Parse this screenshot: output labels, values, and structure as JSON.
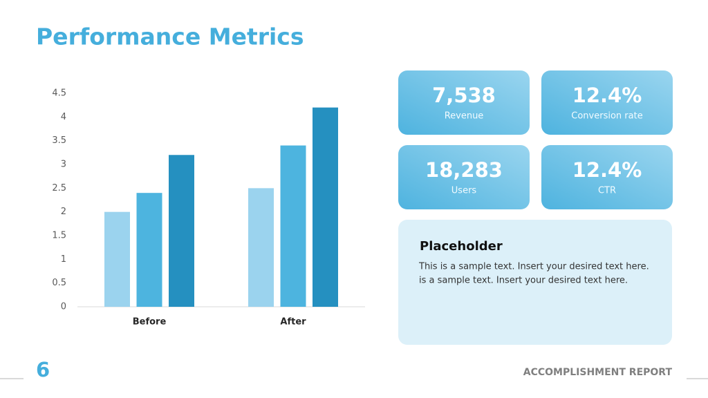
{
  "title": "Performance Metrics",
  "chart_data": {
    "type": "bar",
    "categories": [
      "Before",
      "After"
    ],
    "series": [
      {
        "color": "#9bd3ee",
        "values": [
          2,
          2.5
        ]
      },
      {
        "color": "#4db4df",
        "values": [
          2.4,
          3.4
        ]
      },
      {
        "color": "#2590c0",
        "values": [
          3.2,
          4.2
        ]
      }
    ],
    "ylim": [
      0,
      4.5
    ],
    "yticks": [
      0,
      0.5,
      1,
      1.5,
      2,
      2.5,
      3,
      3.5,
      4,
      4.5
    ],
    "grid": false
  },
  "metrics": [
    {
      "value": "7,538",
      "label": "Revenue"
    },
    {
      "value": "12.4%",
      "label": "Conversion rate"
    },
    {
      "value": "18,283",
      "label": "Users"
    },
    {
      "value": "12.4%",
      "label": "CTR"
    }
  ],
  "note": {
    "title": "Placeholder",
    "lines": [
      "This is a sample text. Insert your desired text here.",
      "is a sample text. Insert your desired text here."
    ]
  },
  "footer": {
    "page": 6,
    "report": "ACCOMPLISHMENT REPORT"
  }
}
